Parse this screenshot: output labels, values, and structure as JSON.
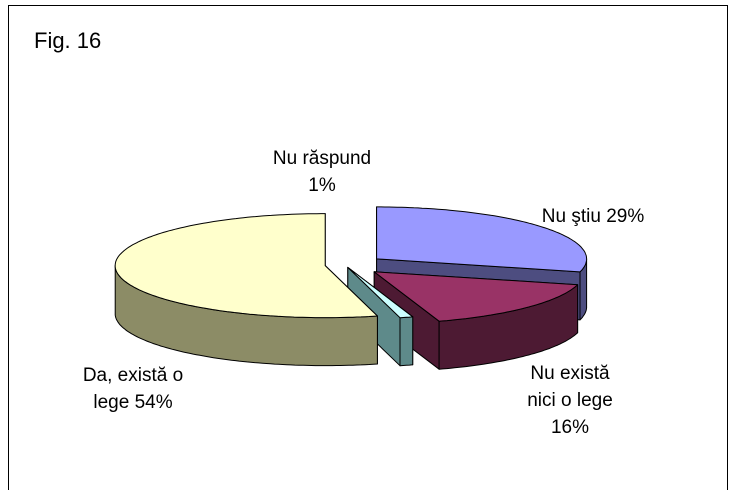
{
  "chart_data": {
    "type": "pie3d",
    "title": "Fig. 16",
    "categories": [
      "Nu ştiu",
      "Nu există nici o lege",
      "Nu răspund",
      "Da, există o lege"
    ],
    "values": [
      29,
      16,
      1,
      54
    ],
    "value_labels": [
      "29%",
      "16%",
      "1%",
      "54%"
    ],
    "colors": [
      "#9999ff",
      "#993366",
      "#ccffff",
      "#ffffcc"
    ],
    "side_colors": [
      "#4d4d80",
      "#4d1a33",
      "#5e8a8a",
      "#8c8c66"
    ]
  }
}
